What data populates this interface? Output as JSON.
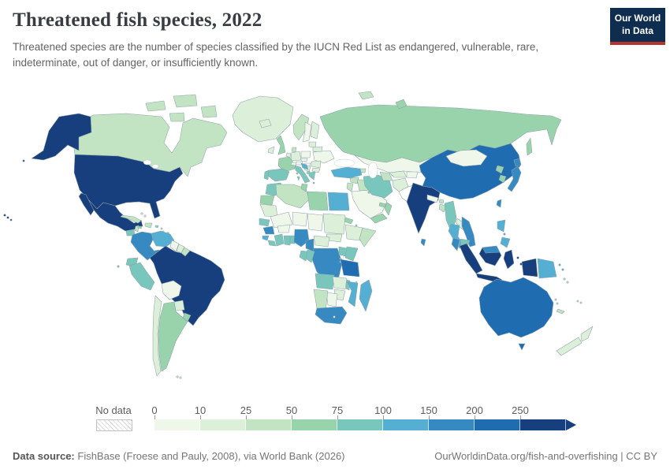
{
  "header": {
    "title": "Threatened fish species, 2022",
    "subtitle": "Threatened species are the number of species classified by the IUCN Red List as endangered, vulnerable, rare, indeterminate, out of danger, or insufficiently known.",
    "logo": {
      "line1": "Our World",
      "line2": "in Data",
      "bg_color": "#0f2d4f",
      "accent_color": "#b5332d"
    }
  },
  "legend": {
    "no_data_label": "No data",
    "ticks": [
      "0",
      "10",
      "25",
      "50",
      "75",
      "100",
      "150",
      "200",
      "250"
    ],
    "buckets": [
      {
        "label": "0-10",
        "color": "#eef7ea"
      },
      {
        "label": "10-25",
        "color": "#dcefd8"
      },
      {
        "label": "25-50",
        "color": "#c2e4c3"
      },
      {
        "label": "50-75",
        "color": "#99d3ab"
      },
      {
        "label": "75-100",
        "color": "#79c7bc"
      },
      {
        "label": "100-150",
        "color": "#55afd3"
      },
      {
        "label": "150-200",
        "color": "#3689c1"
      },
      {
        "label": "200-250",
        "color": "#1f6db0"
      },
      {
        "label": "250+",
        "color": "#173f7e"
      }
    ]
  },
  "footer": {
    "source_label": "Data source:",
    "source_text": "FishBase (Froese and Pauly, 2008), via World Bank (2026)",
    "link_text": "OurWorldinData.org/fish-and-overfishing | CC BY"
  },
  "chart_data": {
    "type": "choropleth",
    "title": "Threatened fish species, 2022",
    "unit": "number of threatened fish species (IUCN Red List)",
    "year": "2022",
    "legend_position": "bottom",
    "countries": {
      "united-states": "250+",
      "canada": "25-50",
      "greenland": "10-25",
      "mexico": "250+",
      "guatemala": "75-100",
      "belize": "25-50",
      "honduras": "50-75",
      "nicaragua": "75-100",
      "costa-rica": "100-150",
      "panama": "150-200",
      "cuba": "25-50",
      "jamaica": "50-75",
      "haiti-dominican-republic": "25-50",
      "puerto-rico": "50-75",
      "bahamas": "10-25",
      "lesser-antilles": "25-50",
      "trinidad": "75-100",
      "colombia": "150-200",
      "venezuela": "100-150",
      "guyana": "0-10",
      "suriname": "10-25",
      "french-guiana": "25-50",
      "ecuador": "75-100",
      "peru": "75-100",
      "brazil": "250+",
      "bolivia": "0-10",
      "paraguay": "10-25",
      "chile": "10-25",
      "argentina": "50-75",
      "uruguay": "50-75",
      "falkland-islands": "10-25",
      "iceland": "10-25",
      "ireland": "10-25",
      "united-kingdom": "50-75",
      "norway": "25-50",
      "sweden": "0-10",
      "finland": "10-25",
      "denmark": "25-50",
      "germany": "10-25",
      "netherlands-belgium": "10-25",
      "france": "50-75",
      "spain": "75-100",
      "portugal": "75-100",
      "italy": "75-100",
      "switzerland": "0-10",
      "austria": "0-10",
      "czechia": "0-10",
      "poland": "0-10",
      "hungary": "0-10",
      "romania": "10-25",
      "bulgaria": "10-25",
      "serbia-bosnia": "10-25",
      "croatia": "100-150",
      "albania": "50-75",
      "greece": "75-100",
      "baltic-states": "10-25",
      "belarus": "10-25",
      "ukraine": "0-10",
      "russia": "50-75",
      "svalbard": "25-50",
      "georgia-azerbaijan": "25-50",
      "turkey": "100-150",
      "syria": "25-50",
      "iraq": "25-50",
      "israel-jordan": "25-50",
      "saudi-arabia": "0-10",
      "kuwait": "50-75",
      "yemen": "50-75",
      "oman": "50-75",
      "uae": "50-75",
      "iran": "75-100",
      "afghanistan": "10-25",
      "kazakhstan": "0-10",
      "uzbekistan": "10-25",
      "turkmenistan": "25-50",
      "kyrgyzstan-tajikistan": "0-10",
      "morocco": "75-100",
      "western-sahara": "50-75",
      "algeria": "25-50",
      "tunisia": "50-75",
      "libya": "50-75",
      "egypt": "100-150",
      "mauritania": "10-25",
      "mali": "0-10",
      "niger": "0-10",
      "chad": "0-10",
      "sudan": "10-25",
      "south-sudan": "10-25",
      "eritrea": "50-75",
      "djibouti": "50-75",
      "ethiopia": "10-25",
      "somalia": "25-50",
      "senegal": "75-100",
      "guinea": "150-200",
      "sierra-leone": "100-150",
      "liberia": "75-100",
      "ivory-coast": "75-100",
      "ghana": "75-100",
      "togo-benin": "75-100",
      "burkina-faso": "0-10",
      "nigeria": "150-200",
      "cameroon": "150-200",
      "central-african-republic": "10-25",
      "dr-congo": "150-200",
      "congo": "75-100",
      "gabon": "75-100",
      "uganda": "75-100",
      "kenya": "75-100",
      "rwanda-burundi": "75-100",
      "tanzania": "200-250",
      "angola": "75-100",
      "zambia": "10-25",
      "malawi": "75-100",
      "mozambique": "100-150",
      "zimbabwe": "10-25",
      "botswana": "0-10",
      "namibia": "25-50",
      "south-africa": "150-200",
      "lesotho": "0-10",
      "madagascar": "100-150",
      "comoros": "25-50",
      "india": "250+",
      "sri-lanka": "150-200",
      "nepal": "0-10",
      "bhutan": "25-50",
      "bangladesh": "25-50",
      "myanmar": "75-100",
      "thailand": "100-150",
      "laos": "10-25",
      "cambodia": "75-100",
      "vietnam": "150-200",
      "china": "200-250",
      "mongolia": "0-10",
      "north-korea": "50-75",
      "south-korea": "50-75",
      "japan": "150-200",
      "taiwan": "150-200",
      "malaysia": "150-200",
      "indonesia": "250+",
      "timor-leste": "25-50",
      "philippines": "100-150",
      "papua-new-guinea": "100-150",
      "solomon-islands": "25-50",
      "vanuatu": "25-50",
      "new-caledonia": "25-50",
      "fiji": "25-50",
      "australia": "200-250",
      "new-zealand": "10-25"
    }
  }
}
